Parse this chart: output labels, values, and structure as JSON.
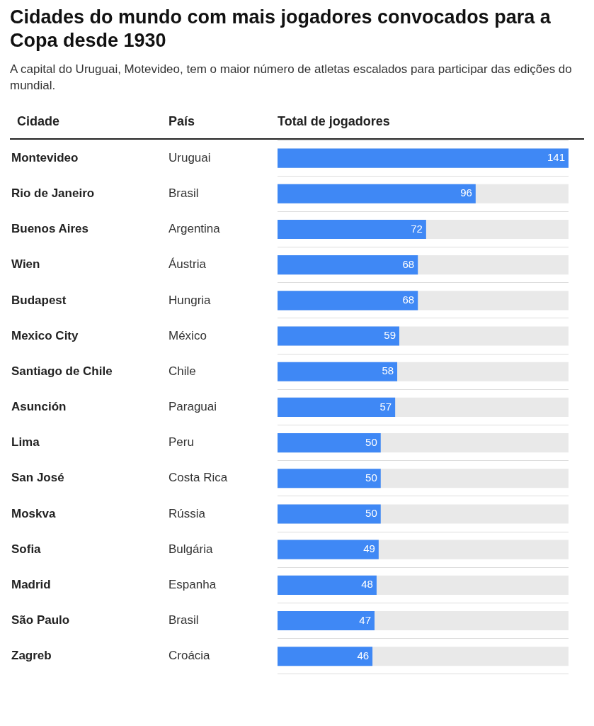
{
  "chart_data": {
    "type": "bar",
    "orientation": "horizontal",
    "title": "Cidades do mundo com mais jogadores convocados para a Copa desde 1930",
    "subtitle": "A capital do Uruguai, Motevideo, tem o maior número de atletas escalados para participar das edições do mundial.",
    "ylabel": "Cidade",
    "xlabel": "Total de jogadores",
    "categories": [
      "Montevideo",
      "Rio de Janeiro",
      "Buenos Aires",
      "Wien",
      "Budapest",
      "Mexico City",
      "Santiago de Chile",
      "Asunción",
      "Lima",
      "San José",
      "Moskva",
      "Sofia",
      "Madrid",
      "São Paulo",
      "Zagreb"
    ],
    "values": [
      141,
      96,
      72,
      68,
      68,
      59,
      58,
      57,
      50,
      50,
      50,
      49,
      48,
      47,
      46
    ],
    "color": "#3f88f5",
    "xlim": [
      0,
      141
    ],
    "data_labels": true,
    "grid": "y",
    "tick_labels": "y",
    "annotations": [
      "País",
      "Uruguai",
      "Brasil",
      "Argentina",
      "Áustria",
      "Hungria",
      "México",
      "Chile",
      "Paraguai",
      "Peru",
      "Costa Rica",
      "Rússia",
      "Bulgária",
      "Espanha",
      "Brasil",
      "Croácia"
    ]
  }
}
